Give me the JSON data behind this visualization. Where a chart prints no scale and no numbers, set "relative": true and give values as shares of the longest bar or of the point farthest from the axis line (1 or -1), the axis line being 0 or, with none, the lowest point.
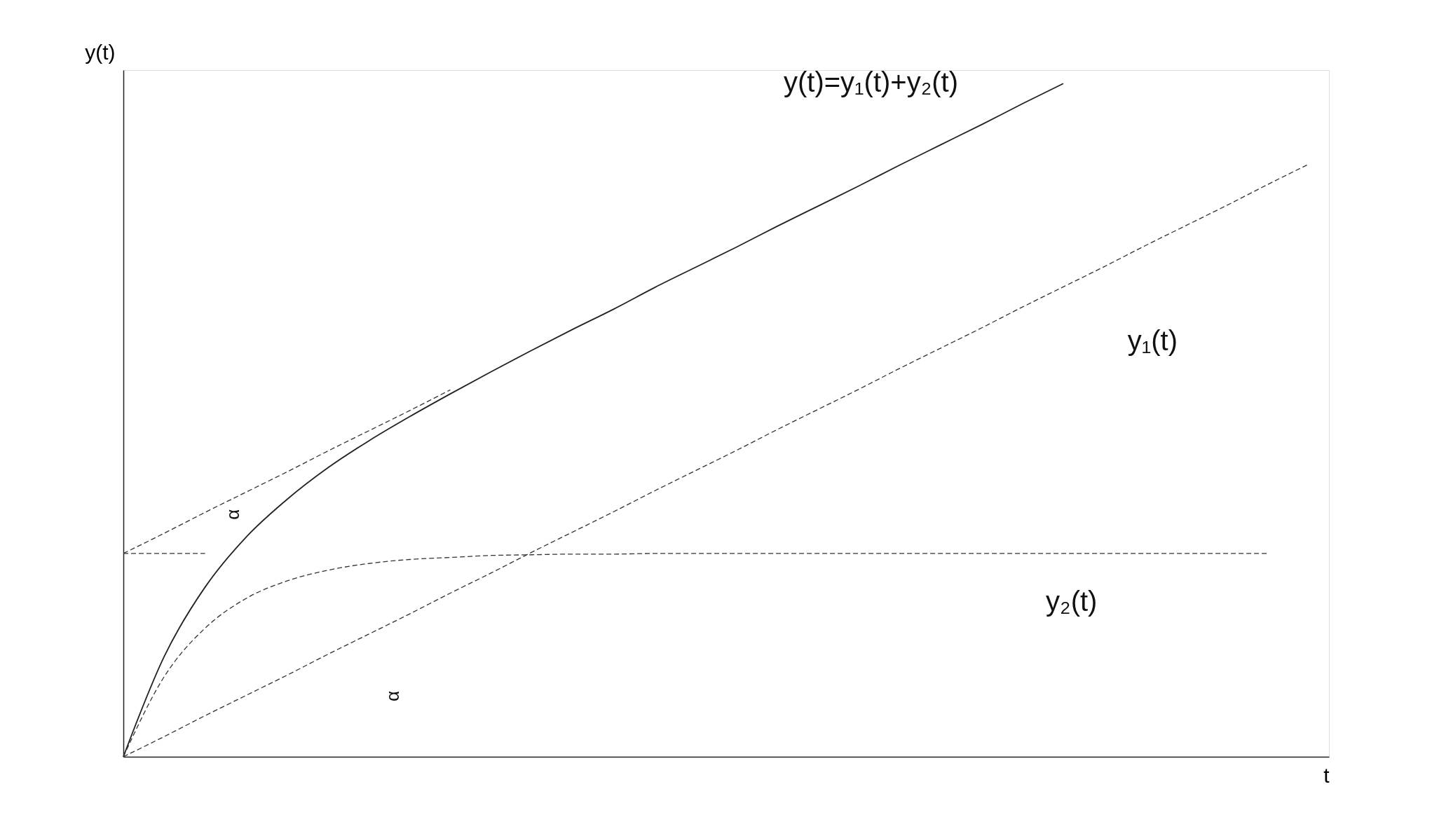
{
  "chart_data": {
    "type": "line",
    "relative": true,
    "xlabel": "t",
    "ylabel": "y(t)",
    "grid": false,
    "marker": "none",
    "categories": [
      null,
      null,
      null,
      null,
      null,
      null,
      null,
      null,
      null,
      null,
      null,
      null,
      null,
      null,
      null,
      null,
      null,
      null,
      null,
      null,
      null,
      null,
      null,
      null,
      null,
      null,
      null,
      null,
      null,
      null
    ],
    "series": [
      {
        "name": "y(t)=y₁(t)+y₂(t)",
        "color": "#222222",
        "line_style": "solid",
        "values": [
          0,
          0.149,
          0.252,
          0.326,
          0.382,
          0.429,
          0.469,
          0.505,
          0.539,
          0.572,
          0.604,
          0.635,
          0.665,
          0.697,
          0.727,
          0.757,
          0.788,
          0.818,
          0.848,
          0.879,
          0.909,
          0.939,
          0.97,
          1.0,
          null,
          null,
          null,
          null,
          null,
          null
        ]
      },
      {
        "name": "y₁(t)",
        "color": "#333333",
        "line_style": "dashed",
        "values": [
          0,
          0.03,
          0.061,
          0.091,
          0.121,
          0.152,
          0.182,
          0.212,
          0.243,
          0.273,
          0.304,
          0.334,
          0.364,
          0.395,
          0.425,
          0.455,
          0.486,
          0.516,
          0.546,
          0.577,
          0.607,
          0.637,
          0.668,
          0.698,
          0.728,
          0.759,
          0.789,
          0.819,
          0.85,
          0.88
        ]
      },
      {
        "name": "y₂(t)",
        "color": "#333333",
        "line_style": "dashed",
        "values": [
          0,
          0.119,
          0.191,
          0.235,
          0.261,
          0.277,
          0.287,
          0.293,
          0.296,
          0.299,
          0.3,
          0.301,
          0.301,
          0.302,
          0.302,
          0.302,
          0.302,
          0.302,
          0.302,
          0.302,
          0.302,
          0.302,
          0.302,
          0.302,
          0.302,
          0.302,
          0.302,
          0.302,
          0.302,
          null
        ]
      },
      {
        "color": "#333333",
        "line_style": "dashed",
        "values": [
          0.302,
          0.332,
          0.363,
          0.393,
          0.423,
          0.454,
          0.484,
          0.514,
          0.545,
          null,
          null,
          null,
          null,
          null,
          null,
          null,
          null,
          null,
          null,
          null,
          null,
          null,
          null,
          null,
          null,
          null,
          null,
          null,
          null,
          null
        ]
      },
      {
        "color": "#333333",
        "line_style": "dashed",
        "values": [
          0.302,
          0.302,
          0.302,
          null,
          null,
          null,
          null,
          null,
          null,
          null,
          null,
          null,
          null,
          null,
          null,
          null,
          null,
          null,
          null,
          null,
          null,
          null,
          null,
          null,
          null,
          null,
          null,
          null,
          null,
          null
        ]
      }
    ],
    "annotations": [
      "α",
      "α"
    ]
  }
}
